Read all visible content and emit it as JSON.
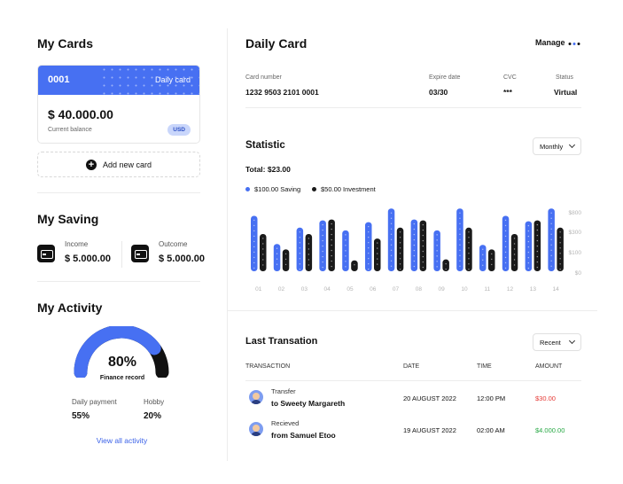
{
  "my_cards": {
    "title": "My Cards",
    "card": {
      "number": "0001",
      "type": "Daily card",
      "balance": "$ 40.000.00",
      "balance_label": "Current balance",
      "currency": "USD"
    },
    "add_card_label": "Add new card"
  },
  "my_saving": {
    "title": "My Saving",
    "income": {
      "label": "Income",
      "value": "$ 5.000.00"
    },
    "outcome": {
      "label": "Outcome",
      "value": "$ 5.000.00"
    }
  },
  "my_activity": {
    "title": "My Activity",
    "percent": "80%",
    "percent_value": 0.8,
    "caption": "Finance record",
    "daily_payment": {
      "label": "Daily payment",
      "value": "55%"
    },
    "hobby": {
      "label": "Hobby",
      "value": "20%"
    },
    "view_all": "View all activity"
  },
  "daily_card": {
    "title": "Daily Card",
    "manage_label": "Manage",
    "card_number_label": "Card number",
    "card_number": "1232 9503 2101 0001",
    "expire_label": "Expire date",
    "expire": "03/30",
    "cvc_label": "CVC",
    "cvc": "***",
    "status_label": "Status",
    "status": "Virtual"
  },
  "statistic": {
    "title": "Statistic",
    "period": "Monthly",
    "total": "Total: $23.00",
    "legend": [
      "$100.00 Saving",
      "$50.00 Investment"
    ]
  },
  "chart_data": {
    "type": "bar",
    "categories": [
      "01",
      "02",
      "03",
      "04",
      "05",
      "06",
      "07",
      "08",
      "09",
      "10",
      "11",
      "12",
      "13",
      "14"
    ],
    "series": [
      {
        "name": "$100.00 Saving",
        "color": "#4770f2",
        "values": [
          610,
          300,
          480,
          560,
          450,
          540,
          690,
          570,
          450,
          690,
          290,
          610,
          550,
          690
        ]
      },
      {
        "name": "$50.00 Investment",
        "color": "#1a1a1a",
        "values": [
          410,
          240,
          410,
          570,
          120,
          360,
          480,
          560,
          130,
          480,
          240,
          410,
          560,
          480
        ]
      }
    ],
    "yticks": [
      "$800",
      "$300",
      "$100",
      "$0"
    ],
    "ylim": [
      0,
      800
    ]
  },
  "transactions": {
    "title": "Last Transation",
    "filter": "Recent",
    "headers": [
      "TRANSACTION",
      "DATE",
      "TIME",
      "AMOUNT"
    ],
    "rows": [
      {
        "type": "Transfer",
        "name": "to Sweety Margareth",
        "date": "20 AUGUST 2022",
        "time": "12:00 PM",
        "amount": "$30.00",
        "color": "#e53935"
      },
      {
        "type": "Recieved",
        "name": "from Samuel Etoo",
        "date": "19 AUGUST 2022",
        "time": "02:00 AM",
        "amount": "$4.000.00",
        "color": "#27a844"
      }
    ]
  }
}
